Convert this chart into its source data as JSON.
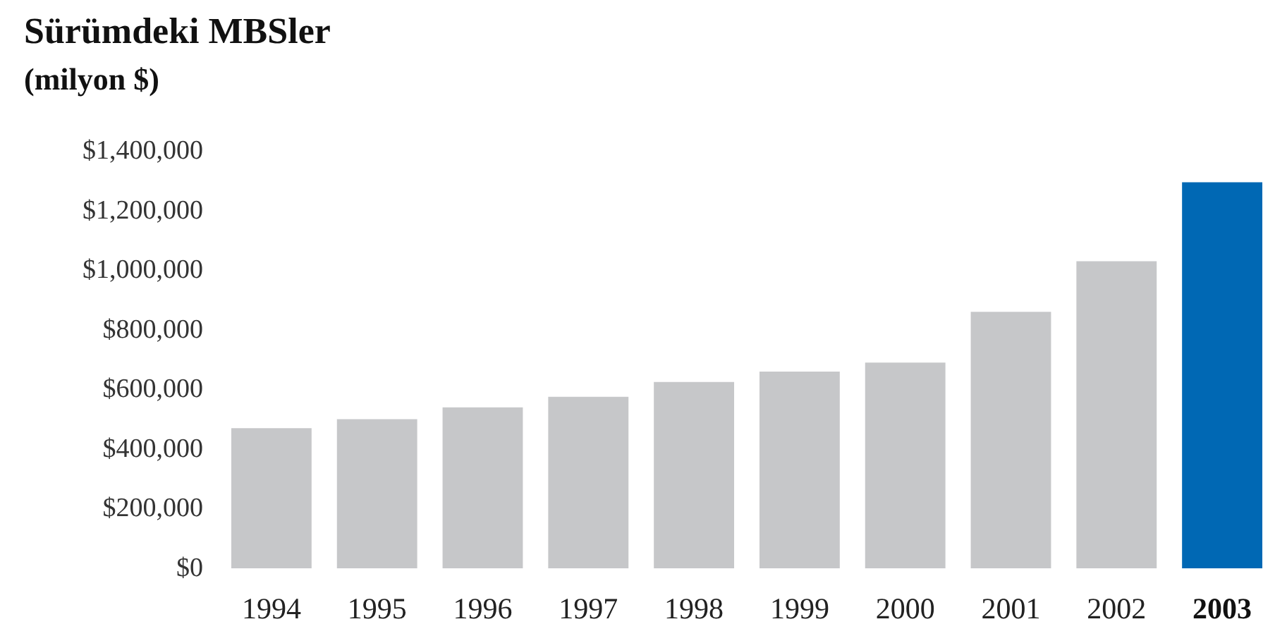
{
  "chart_data": {
    "type": "bar",
    "title": "Sürümdeki MBSler",
    "subtitle": "(milyon $)",
    "categories": [
      "1994",
      "1995",
      "1996",
      "1997",
      "1998",
      "1999",
      "2000",
      "2001",
      "2002",
      "2003"
    ],
    "values": [
      470000,
      500000,
      540000,
      575000,
      625000,
      660000,
      690000,
      860000,
      1030000,
      1295000
    ],
    "colors": [
      "#c6c7c9",
      "#c6c7c9",
      "#c6c7c9",
      "#c6c7c9",
      "#c6c7c9",
      "#c6c7c9",
      "#c6c7c9",
      "#c6c7c9",
      "#c6c7c9",
      "#0068b4"
    ],
    "ylim": [
      0,
      1400000
    ],
    "yticks": [
      {
        "value": 0,
        "label": "$0"
      },
      {
        "value": 200000,
        "label": "$200,000"
      },
      {
        "value": 400000,
        "label": "$400,000"
      },
      {
        "value": 600000,
        "label": "$600,000"
      },
      {
        "value": 800000,
        "label": "$800,000"
      },
      {
        "value": 1000000,
        "label": "$1,000,000"
      },
      {
        "value": 1200000,
        "label": "$1,200,000"
      },
      {
        "value": 1400000,
        "label": "$1,400,000"
      }
    ]
  }
}
